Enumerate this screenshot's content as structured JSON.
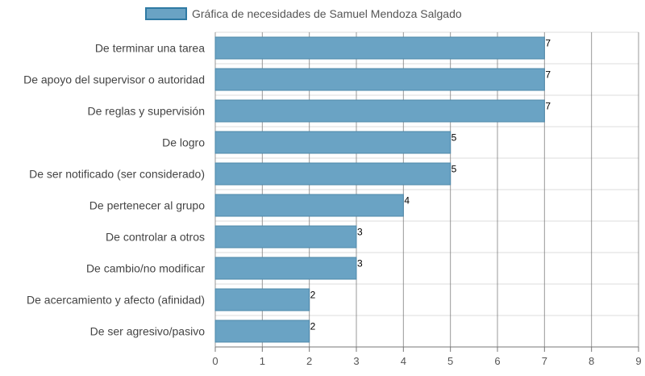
{
  "legend": {
    "label": "Gráfica de necesidades de Samuel Mendoza Salgado"
  },
  "colors": {
    "bar_fill": "#6aa3c4",
    "bar_stroke": "#4d88aa",
    "grid": "#777777",
    "grid_light": "#dddddd"
  },
  "chart_data": {
    "type": "bar",
    "orientation": "horizontal",
    "categories": [
      "De terminar una tarea",
      "De apoyo del supervisor o autoridad",
      "De reglas y supervisión",
      "De logro",
      "De ser notificado (ser considerado)",
      "De pertenecer al grupo",
      "De controlar a otros",
      "De cambio/no modificar",
      "De acercamiento y afecto (afinidad)",
      "De ser agresivo/pasivo"
    ],
    "series": [
      {
        "name": "Gráfica de necesidades de Samuel Mendoza Salgado",
        "values": [
          7,
          7,
          7,
          5,
          5,
          4,
          3,
          3,
          2,
          2
        ]
      }
    ],
    "xlim": [
      0,
      9
    ],
    "xticks": [
      0,
      1,
      2,
      3,
      4,
      5,
      6,
      7,
      8,
      9
    ],
    "title": "",
    "xlabel": "",
    "ylabel": "",
    "data_labels": true,
    "grid": true,
    "legend_position": "top"
  }
}
